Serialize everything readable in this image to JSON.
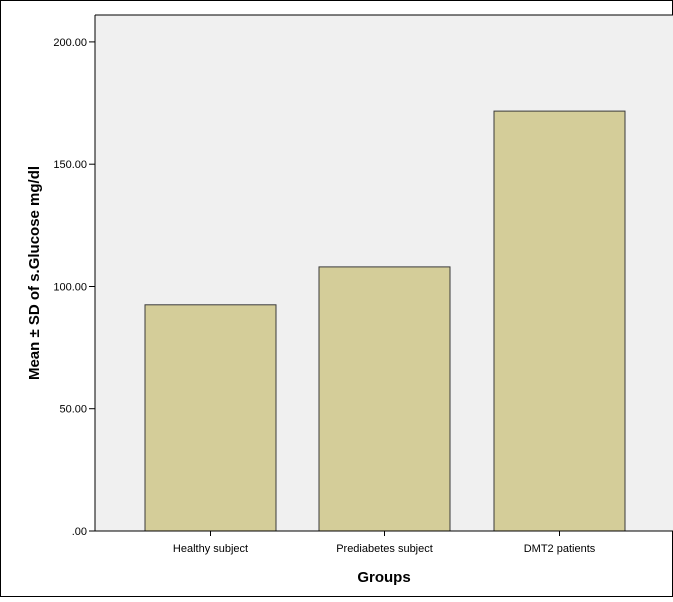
{
  "chart_data": {
    "type": "bar",
    "title": "",
    "xlabel": "Groups",
    "ylabel": "Mean ± SD of s.Glucose mg/dl",
    "categories": [
      "Healthy subject",
      "Prediabetes subject",
      "DMT2 patients"
    ],
    "values": [
      92.5,
      108.0,
      171.7
    ],
    "ylim": [
      0,
      211
    ],
    "yticks": [
      0,
      50,
      100,
      150,
      200
    ],
    "ytick_labels": [
      ".00",
      "50.00",
      "100.00",
      "150.00",
      "200.00"
    ],
    "grid": false,
    "colors": {
      "plot_background": "#f0f0f0",
      "bar_fill": "#d4cd99",
      "bar_stroke": "#3a3a3a",
      "axis": "#000000"
    }
  }
}
